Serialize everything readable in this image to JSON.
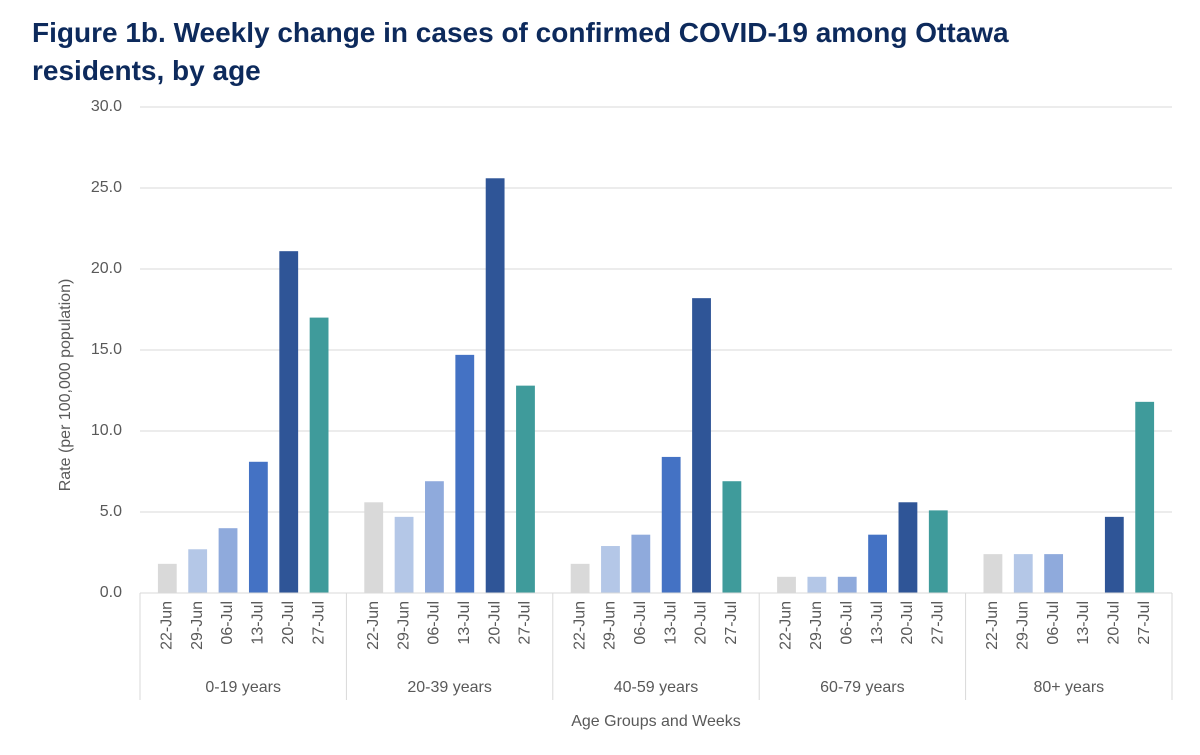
{
  "chart_data": {
    "type": "bar",
    "title": "Figure 1b. Weekly change in cases of confirmed COVID-19 among Ottawa residents, by age",
    "title_lines": [
      "Figure 1b. Weekly change in cases of confirmed COVID-19 among Ottawa",
      "residents, by age"
    ],
    "x_label": "Age Groups and Weeks",
    "y_label": "Rate (per 100,000 population)",
    "categories": [
      "0-19 years",
      "20-39 years",
      "40-59 years",
      "60-79 years",
      "80+ years"
    ],
    "series": [
      {
        "name": "22-Jun",
        "color": "#d9d9d9",
        "values": [
          1.8,
          5.6,
          1.8,
          1.0,
          2.4
        ]
      },
      {
        "name": "29-Jun",
        "color": "#b4c7e7",
        "values": [
          2.7,
          4.7,
          2.9,
          1.0,
          2.4
        ]
      },
      {
        "name": "06-Jul",
        "color": "#8faadc",
        "values": [
          4.0,
          6.9,
          3.6,
          1.0,
          2.4
        ]
      },
      {
        "name": "13-Jul",
        "color": "#4472c4",
        "values": [
          8.1,
          14.7,
          8.4,
          3.6,
          0
        ]
      },
      {
        "name": "20-Jul",
        "color": "#2f5597",
        "values": [
          21.1,
          25.6,
          18.2,
          5.6,
          4.7
        ]
      },
      {
        "name": "27-Jul",
        "color": "#3f9b9b",
        "values": [
          17.0,
          12.8,
          6.9,
          5.1,
          11.8
        ]
      }
    ],
    "ylim": [
      0,
      30
    ],
    "yticks": [
      {
        "value": 0,
        "label": "0.0"
      },
      {
        "value": 5,
        "label": "5.0"
      },
      {
        "value": 10,
        "label": "10.0"
      },
      {
        "value": 15,
        "label": "15.0"
      },
      {
        "value": 20,
        "label": "20.0"
      },
      {
        "value": 25,
        "label": "25.0"
      },
      {
        "value": 30,
        "label": "30.0"
      }
    ],
    "grid": true
  }
}
